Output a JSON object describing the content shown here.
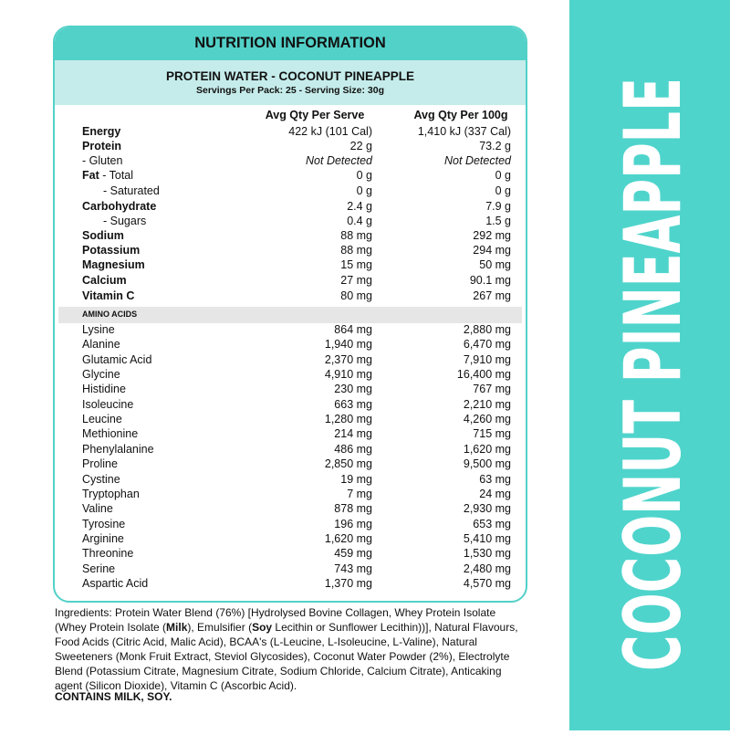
{
  "side_label": "COCONUT PINEAPPLE",
  "panel": {
    "title": "NUTRITION INFORMATION",
    "product": "PROTEIN WATER - COCONUT PINEAPPLE",
    "serving": "Servings Per Pack: 25 - Serving Size: 30g",
    "columns": [
      "Avg Qty Per Serve",
      "Avg Qty Per 100g"
    ],
    "nutrients": [
      {
        "label": "Energy",
        "bold": true,
        "per_serve": "422 kJ (101 Cal)",
        "per_100g": "1,410 kJ (337 Cal)"
      },
      {
        "label": "Protein",
        "bold": true,
        "per_serve": "22 g",
        "per_100g": "73.2 g"
      },
      {
        "label": "- Gluten",
        "bold": false,
        "italic": true,
        "per_serve": "Not Detected",
        "per_100g": "Not Detected"
      },
      {
        "label": "Fat",
        "suffix": " - Total",
        "bold": true,
        "per_serve": "0 g",
        "per_100g": "0 g"
      },
      {
        "label": "- Saturated",
        "bold": false,
        "indent": true,
        "per_serve": "0 g",
        "per_100g": "0 g"
      },
      {
        "label": "Carbohydrate",
        "bold": true,
        "per_serve": "2.4 g",
        "per_100g": "7.9 g"
      },
      {
        "label": "- Sugars",
        "bold": false,
        "indent": true,
        "per_serve": "0.4 g",
        "per_100g": "1.5 g"
      },
      {
        "label": "Sodium",
        "bold": true,
        "per_serve": "88 mg",
        "per_100g": "292 mg"
      },
      {
        "label": "Potassium",
        "bold": true,
        "per_serve": "88 mg",
        "per_100g": "294 mg"
      },
      {
        "label": "Magnesium",
        "bold": true,
        "per_serve": "15 mg",
        "per_100g": "50 mg"
      },
      {
        "label": "Calcium",
        "bold": true,
        "per_serve": "27 mg",
        "per_100g": "90.1 mg"
      },
      {
        "label": "Vitamin C",
        "bold": true,
        "per_serve": "80 mg",
        "per_100g": "267 mg"
      }
    ],
    "amino_heading": "AMINO ACIDS",
    "amino_acids": [
      {
        "label": "Lysine",
        "per_serve": "864 mg",
        "per_100g": "2,880 mg"
      },
      {
        "label": "Alanine",
        "per_serve": "1,940 mg",
        "per_100g": "6,470 mg"
      },
      {
        "label": "Glutamic Acid",
        "per_serve": "2,370 mg",
        "per_100g": "7,910 mg"
      },
      {
        "label": "Glycine",
        "per_serve": "4,910 mg",
        "per_100g": "16,400 mg"
      },
      {
        "label": "Histidine",
        "per_serve": "230 mg",
        "per_100g": "767 mg"
      },
      {
        "label": "Isoleucine",
        "per_serve": "663 mg",
        "per_100g": "2,210 mg"
      },
      {
        "label": "Leucine",
        "per_serve": "1,280 mg",
        "per_100g": "4,260 mg"
      },
      {
        "label": "Methionine",
        "per_serve": "214 mg",
        "per_100g": "715 mg"
      },
      {
        "label": "Phenylalanine",
        "per_serve": "486 mg",
        "per_100g": "1,620 mg"
      },
      {
        "label": "Proline",
        "per_serve": "2,850 mg",
        "per_100g": "9,500 mg"
      },
      {
        "label": "Cystine",
        "per_serve": "19 mg",
        "per_100g": "63 mg"
      },
      {
        "label": "Tryptophan",
        "per_serve": "7 mg",
        "per_100g": "24 mg"
      },
      {
        "label": "Valine",
        "per_serve": "878 mg",
        "per_100g": "2,930 mg"
      },
      {
        "label": "Tyrosine",
        "per_serve": "196 mg",
        "per_100g": "653 mg"
      },
      {
        "label": "Arginine",
        "per_serve": "1,620 mg",
        "per_100g": "5,410 mg"
      },
      {
        "label": "Threonine",
        "per_serve": "459 mg",
        "per_100g": "1,530 mg"
      },
      {
        "label": "Serine",
        "per_serve": "743 mg",
        "per_100g": "2,480 mg"
      },
      {
        "label": "Aspartic Acid",
        "per_serve": "1,370 mg",
        "per_100g": "4,570 mg"
      }
    ]
  },
  "ingredients": [
    {
      "text": "Ingredients: Protein Water Blend (76%) [Hydrolysed Bovine Collagen, Whey Protein Isolate (Whey Protein Isolate (",
      "bold": false
    },
    {
      "text": "Milk",
      "bold": true
    },
    {
      "text": "), Emulsifier (",
      "bold": false
    },
    {
      "text": "Soy",
      "bold": true
    },
    {
      "text": " Lecithin or Sunflower Lecithin))], Natural Flavours, Food Acids (Citric Acid, Malic Acid), BCAA's (L-Leucine, L-Isoleucine, L-Valine), Natural Sweeteners (Monk Fruit Extract, Steviol Glycosides), Coconut Water Powder (2%), Electrolyte Blend (Potassium Citrate, Magnesium Citrate, Sodium Chloride, Calcium Citrate), Anticaking agent (Silicon Dioxide), Vitamin C (Ascorbic Acid).",
      "bold": false
    }
  ],
  "allergens": "CONTAINS MILK, SOY."
}
